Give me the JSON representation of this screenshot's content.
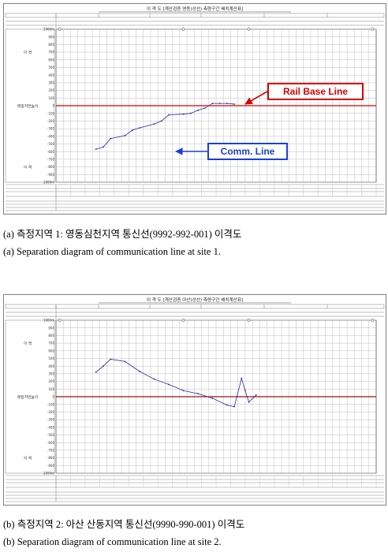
{
  "chart_data": [
    {
      "type": "line",
      "title": "이 격 도 [계산검증 영동(상선) 측량구간 배치계산표]",
      "y_ticks": [
        "1000m",
        "900",
        "800",
        "700",
        "600",
        "500",
        "400",
        "300",
        "200",
        "100",
        "0",
        "-100",
        "-200",
        "-300",
        "-400",
        "-500",
        "-600",
        "-700",
        "-800",
        "-900",
        "-1000m"
      ],
      "ylim": [
        -1000,
        1000
      ],
      "y_labels": [
        "이 격",
        "레일저면높이",
        "이 격"
      ],
      "x_count": 44,
      "reference_line": {
        "name": "Rail Base Line",
        "y": 0,
        "color": "#d40000"
      },
      "series": [
        {
          "name": "Comm. Line",
          "color": "#2a2aa0",
          "x": [
            5,
            6,
            7,
            9,
            10,
            11,
            13,
            14,
            15,
            17,
            18,
            19,
            20,
            21,
            22,
            23,
            24
          ],
          "y": [
            -570,
            -540,
            -430,
            -390,
            -320,
            -290,
            -240,
            -200,
            -120,
            -110,
            -100,
            -60,
            -30,
            30,
            30,
            30,
            20
          ]
        }
      ],
      "callouts": [
        "Rail Base Line",
        "Comm. Line"
      ],
      "caption_kr": "(a) 측정지역 1: 영동심천지역 통신선(9992-992-001) 이격도",
      "caption_en": "(a) Separation diagram of communication line at site 1."
    },
    {
      "type": "line",
      "title": "이 격 도 [계산검증 아산(상선) 측량구간 배치계산표]",
      "y_ticks": [
        "1000m",
        "900",
        "800",
        "700",
        "600",
        "500",
        "400",
        "300",
        "200",
        "100",
        "0",
        "-100",
        "-200",
        "-300",
        "-400",
        "-500",
        "-600",
        "-700",
        "-800",
        "-900",
        "-1000m"
      ],
      "ylim": [
        -1000,
        1000
      ],
      "y_labels": [
        "이 격",
        "레일저면높이",
        "이 격"
      ],
      "x_count": 44,
      "reference_line": {
        "name": "",
        "y": 0,
        "color": "#9a1010"
      },
      "series": [
        {
          "name": "",
          "color": "#2a2aa0",
          "x": [
            5,
            6,
            7,
            9,
            11,
            13,
            15,
            17,
            19,
            21,
            23,
            24,
            25,
            25.5,
            26,
            27
          ],
          "y": [
            320,
            400,
            490,
            460,
            330,
            230,
            160,
            80,
            40,
            -20,
            -110,
            -130,
            240,
            80,
            -70,
            20
          ]
        }
      ],
      "caption_kr": "(b) 측정지역 2: 아산 산동지역 통신선(9990-990-001) 이격도",
      "caption_en": "(b) Separation diagram of communication line at site 2."
    }
  ]
}
